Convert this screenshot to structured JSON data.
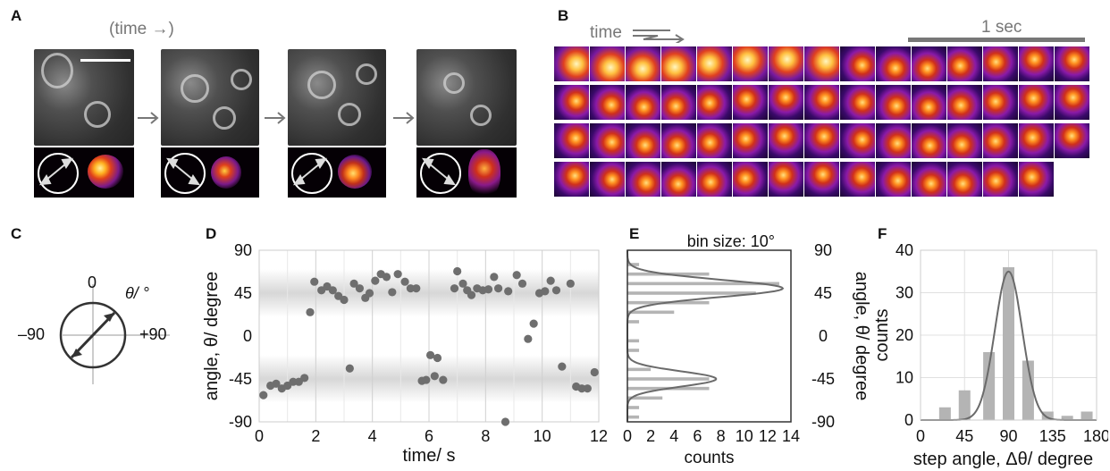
{
  "panels": {
    "A": {
      "label": "A",
      "time_text": "(time →)"
    },
    "B": {
      "label": "B",
      "time_text": "time",
      "scale_text": "1 sec",
      "rows": [
        15,
        15,
        15,
        14
      ]
    },
    "C": {
      "label": "C",
      "top": "0",
      "left": "–90",
      "right": "+90",
      "theta": "θ/ °"
    },
    "D": {
      "label": "D"
    },
    "E": {
      "label": "E"
    },
    "F": {
      "label": "F"
    }
  },
  "colors": {
    "dot": "#6e6e6e",
    "bar": "#b4b4b4",
    "line": "#6a6a6a",
    "band": "#d7d7d7",
    "grid": "#d0d0d0"
  },
  "chart_data": [
    {
      "panel": "D",
      "type": "scatter",
      "xlabel": "time/ s",
      "ylabel": "angle, θ/ degree",
      "xlim": [
        0,
        12
      ],
      "ylim": [
        -90,
        90
      ],
      "xticks": [
        "0",
        "2",
        "4",
        "6",
        "8",
        "10",
        "12"
      ],
      "yticks": [
        "90",
        "45",
        "0",
        "-45",
        "-90"
      ],
      "grid": true,
      "bands": [
        45,
        -45
      ],
      "points": [
        [
          0.15,
          -62
        ],
        [
          0.4,
          -52
        ],
        [
          0.6,
          -50
        ],
        [
          0.8,
          -55
        ],
        [
          1.0,
          -52
        ],
        [
          1.2,
          -48
        ],
        [
          1.4,
          -48
        ],
        [
          1.6,
          -44
        ],
        [
          1.8,
          25
        ],
        [
          1.95,
          57
        ],
        [
          2.2,
          48
        ],
        [
          2.4,
          52
        ],
        [
          2.6,
          48
        ],
        [
          2.8,
          42
        ],
        [
          3.0,
          38
        ],
        [
          3.2,
          -34
        ],
        [
          3.35,
          55
        ],
        [
          3.55,
          50
        ],
        [
          3.75,
          40
        ],
        [
          3.9,
          45
        ],
        [
          4.1,
          58
        ],
        [
          4.3,
          65
        ],
        [
          4.5,
          62
        ],
        [
          4.7,
          46
        ],
        [
          4.9,
          65
        ],
        [
          5.15,
          57
        ],
        [
          5.35,
          50
        ],
        [
          5.55,
          50
        ],
        [
          5.75,
          -47
        ],
        [
          5.9,
          -46
        ],
        [
          6.05,
          -20
        ],
        [
          6.2,
          -42
        ],
        [
          6.3,
          -23
        ],
        [
          6.5,
          -46
        ],
        [
          7.0,
          68
        ],
        [
          6.9,
          50
        ],
        [
          7.2,
          55
        ],
        [
          7.35,
          48
        ],
        [
          7.5,
          43
        ],
        [
          7.7,
          50
        ],
        [
          7.9,
          48
        ],
        [
          8.1,
          49
        ],
        [
          8.3,
          62
        ],
        [
          8.45,
          50
        ],
        [
          8.7,
          -90
        ],
        [
          8.8,
          47
        ],
        [
          9.1,
          64
        ],
        [
          9.3,
          55
        ],
        [
          9.5,
          -3
        ],
        [
          9.7,
          13
        ],
        [
          9.9,
          45
        ],
        [
          10.1,
          47
        ],
        [
          10.3,
          58
        ],
        [
          10.5,
          48
        ],
        [
          10.7,
          -32
        ],
        [
          11.0,
          55
        ],
        [
          11.2,
          -53
        ],
        [
          11.4,
          -55
        ],
        [
          11.6,
          -55
        ],
        [
          11.85,
          -38
        ]
      ]
    },
    {
      "panel": "E",
      "type": "bar",
      "orientation": "horizontal",
      "title": "bin size: 10°",
      "xlabel": "counts",
      "ylabel": "angle, θ/ degree",
      "xlim": [
        0,
        14
      ],
      "ylim": [
        -90,
        90
      ],
      "xticks": [
        "0",
        "2",
        "4",
        "6",
        "8",
        "10",
        "12",
        "14"
      ],
      "yticks": [
        "90",
        "45",
        "0",
        "-45",
        "-90"
      ],
      "bins_center": [
        85,
        75,
        65,
        55,
        45,
        35,
        25,
        15,
        5,
        -5,
        -15,
        -25,
        -35,
        -45,
        -55,
        -65,
        -75,
        -85
      ],
      "values": [
        0,
        1,
        7,
        13,
        11,
        7,
        4,
        1,
        0,
        1,
        1,
        0,
        2,
        7,
        7,
        3,
        1,
        1
      ],
      "fit_peaks": [
        {
          "mu": 50,
          "sigma": 9,
          "amp": 13.3
        },
        {
          "mu": -45,
          "sigma": 8,
          "amp": 7.6
        }
      ]
    },
    {
      "panel": "F",
      "type": "bar",
      "xlabel": "step angle, Δθ/ degree",
      "ylabel": "counts",
      "xlim": [
        0,
        180
      ],
      "ylim": [
        0,
        40
      ],
      "xticks": [
        "0",
        "45",
        "90",
        "135",
        "180"
      ],
      "yticks": [
        "0",
        "10",
        "20",
        "30",
        "40"
      ],
      "bins_center": [
        25,
        45,
        70,
        90,
        110,
        130,
        150,
        170
      ],
      "values": [
        3,
        7,
        16,
        36,
        14,
        2,
        1,
        2
      ],
      "fit": {
        "mu": 90,
        "sigma": 14,
        "amp": 35
      }
    }
  ]
}
